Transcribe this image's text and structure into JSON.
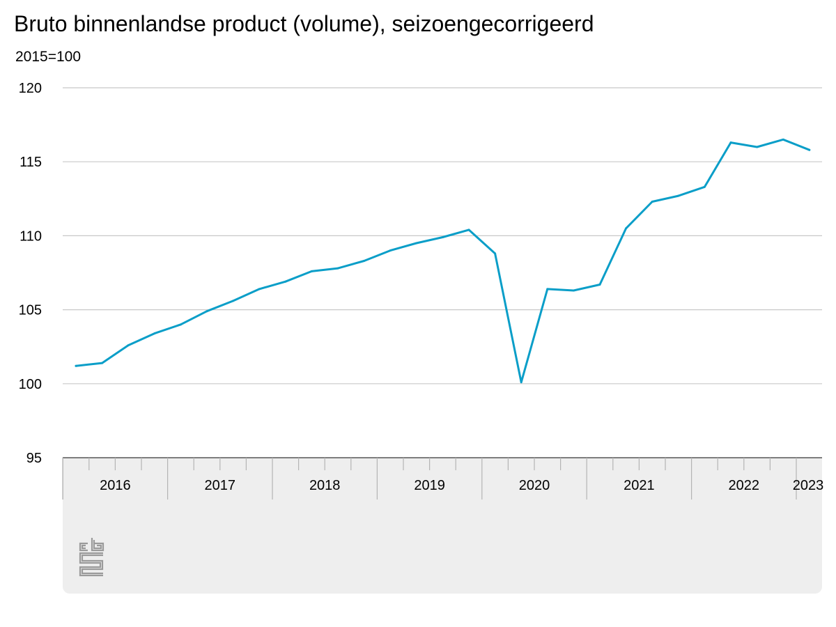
{
  "title": "Bruto binnenlandse product (volume), seizoengecorrigeerd",
  "subtitle": "2015=100",
  "colors": {
    "line": "#0a9ec8",
    "grid": "#c8c8c8",
    "axis_band": "#eeeeee",
    "axis": "#555555"
  },
  "logo": {
    "icon": "cbs-logo-icon"
  },
  "chart_data": {
    "type": "line",
    "title": "Bruto binnenlandse product (volume), seizoengecorrigeerd",
    "ylabel": "2015=100",
    "xlabel": "",
    "ylim": [
      95,
      120
    ],
    "yticks": [
      95,
      100,
      105,
      110,
      115,
      120
    ],
    "grid": true,
    "x_tick_labels": [
      "2016",
      "2017",
      "2018",
      "2019",
      "2020",
      "2021",
      "2022",
      "2023"
    ],
    "x": [
      "2016 Q1",
      "2016 Q2",
      "2016 Q3",
      "2016 Q4",
      "2017 Q1",
      "2017 Q2",
      "2017 Q3",
      "2017 Q4",
      "2018 Q1",
      "2018 Q2",
      "2018 Q3",
      "2018 Q4",
      "2019 Q1",
      "2019 Q2",
      "2019 Q3",
      "2019 Q4",
      "2020 Q1",
      "2020 Q2",
      "2020 Q3",
      "2020 Q4",
      "2021 Q1",
      "2021 Q2",
      "2021 Q3",
      "2021 Q4",
      "2022 Q1",
      "2022 Q2",
      "2022 Q3",
      "2022 Q4",
      "2023 Q1"
    ],
    "series": [
      {
        "values": [
          101.2,
          101.4,
          102.6,
          103.4,
          104.0,
          104.9,
          105.6,
          106.4,
          106.9,
          107.6,
          107.8,
          108.3,
          109.0,
          109.5,
          109.9,
          110.4,
          108.8,
          100.1,
          106.4,
          106.3,
          106.7,
          110.5,
          112.3,
          112.7,
          113.3,
          116.3,
          116.0,
          116.5,
          115.8
        ]
      }
    ]
  }
}
